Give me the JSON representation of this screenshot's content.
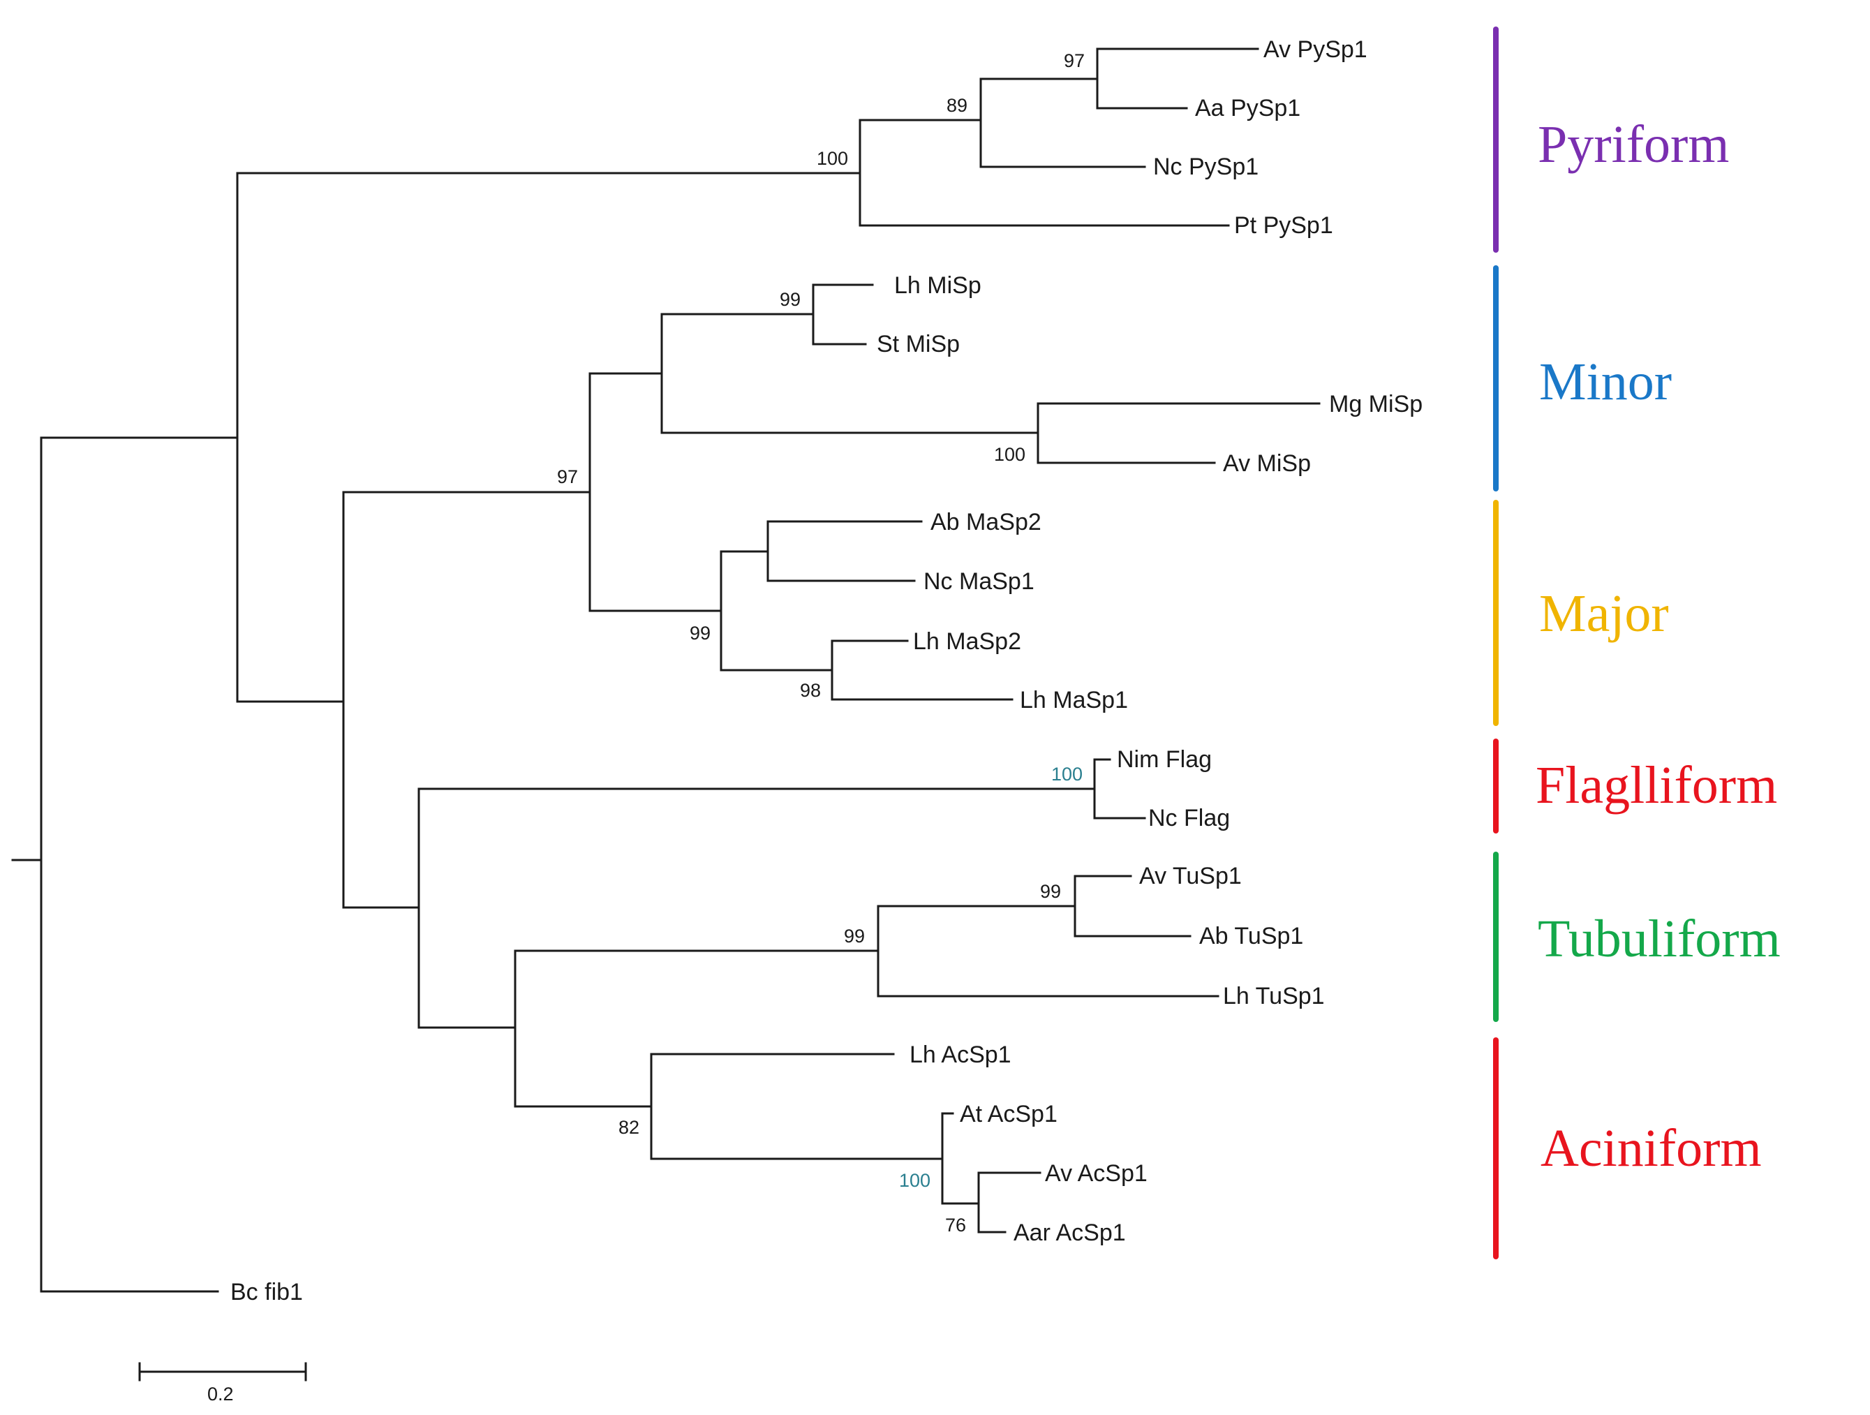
{
  "leaves": [
    "Av PySp1",
    "Aa PySp1",
    "Nc PySp1",
    "Pt PySp1",
    "Lh MiSp",
    "St MiSp",
    "Mg MiSp",
    "Av MiSp",
    "Ab MaSp2",
    "Nc MaSp1",
    "Lh MaSp2",
    "Lh MaSp1",
    "Nim Flag",
    "Nc Flag",
    "Av TuSp1",
    "Ab TuSp1",
    "Lh TuSp1",
    "Lh AcSp1",
    "At AcSp1",
    "Av AcSp1",
    "Aar AcSp1",
    "Bc fib1"
  ],
  "bootstrap": [
    "97",
    "89",
    "100",
    "99",
    "100",
    "97",
    "99",
    "98",
    "100",
    "99",
    "99",
    "82",
    "100",
    "76"
  ],
  "groups": [
    {
      "name": "Pyriform",
      "color": "#7a2fb0"
    },
    {
      "name": "Minor",
      "color": "#1a78c8"
    },
    {
      "name": "Major",
      "color": "#f0b400"
    },
    {
      "name": "Flaglliform",
      "color": "#e8141e"
    },
    {
      "name": "Tubuliform",
      "color": "#14a84a"
    },
    {
      "name": "Aciniform",
      "color": "#e8141e"
    }
  ],
  "scale": {
    "label": "0.2"
  }
}
